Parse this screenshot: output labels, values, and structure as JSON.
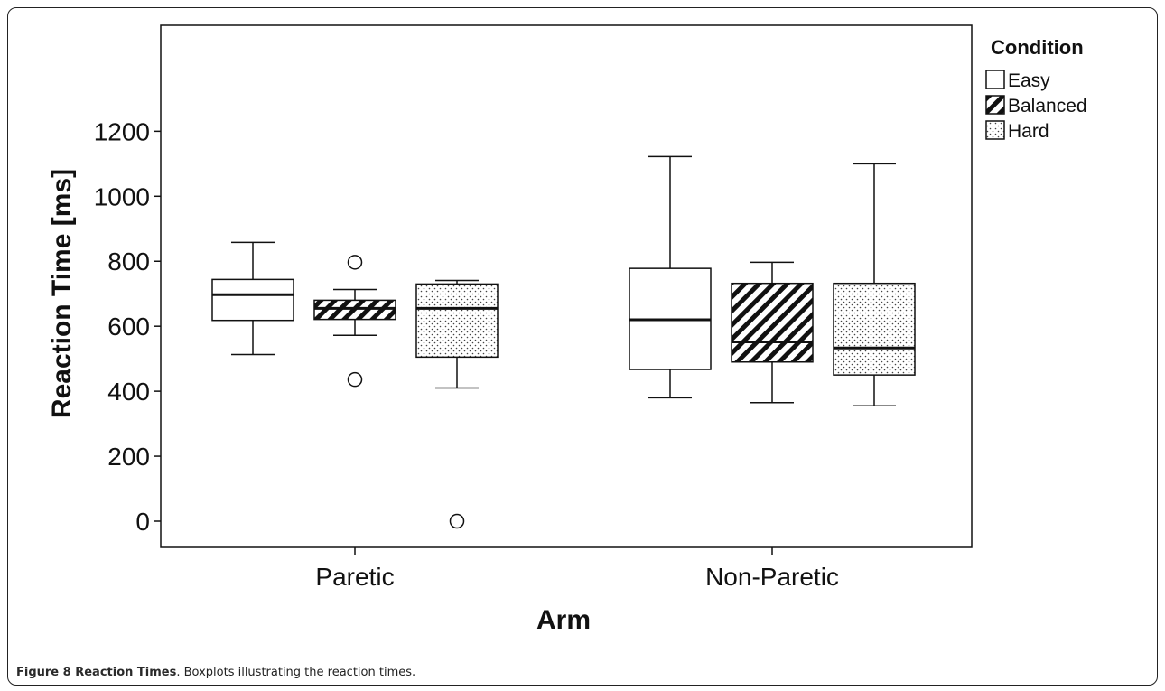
{
  "chart_data": {
    "type": "boxplot",
    "xlabel": "Arm",
    "ylabel": "Reaction Time [ms]",
    "ylim": [
      -70,
      1260
    ],
    "yticks": [
      0,
      200,
      400,
      600,
      800,
      1000,
      1200
    ],
    "categories": [
      "Paretic",
      "Non-Paretic"
    ],
    "legend": {
      "title": "Condition",
      "position": "top-right"
    },
    "series": [
      {
        "name": "Easy",
        "pattern": "none",
        "boxes": [
          {
            "min": 513,
            "q1": 618,
            "median": 697,
            "q3": 744,
            "max": 858,
            "outliers": []
          },
          {
            "min": 380,
            "q1": 467,
            "median": 620,
            "q3": 778,
            "max": 1122,
            "outliers": []
          }
        ]
      },
      {
        "name": "Balanced",
        "pattern": "hatch",
        "boxes": [
          {
            "min": 572,
            "q1": 621,
            "median": 655,
            "q3": 680,
            "max": 713,
            "outliers": [
              797,
              436
            ]
          },
          {
            "min": 365,
            "q1": 490,
            "median": 552,
            "q3": 732,
            "max": 797,
            "outliers": []
          }
        ]
      },
      {
        "name": "Hard",
        "pattern": "dots",
        "boxes": [
          {
            "min": 410,
            "q1": 505,
            "median": 655,
            "q3": 730,
            "max": 741,
            "outliers": [
              0
            ]
          },
          {
            "min": 355,
            "q1": 450,
            "median": 533,
            "q3": 732,
            "max": 1100,
            "outliers": []
          }
        ]
      }
    ]
  },
  "caption": {
    "label": "Figure 8 Reaction Times",
    "text": ". Boxplots illustrating the reaction times."
  }
}
